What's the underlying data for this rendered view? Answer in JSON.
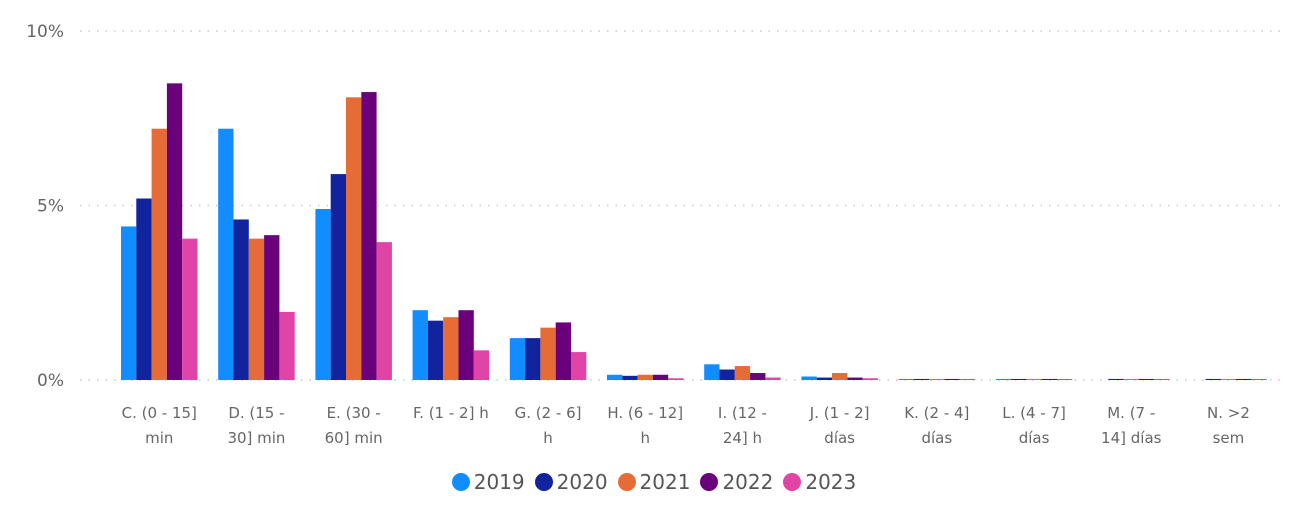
{
  "chart_data": {
    "type": "bar",
    "categories": [
      [
        "C. (0 - 15]",
        "min"
      ],
      [
        "D. (15 -",
        "30] min"
      ],
      [
        "E. (30 -",
        "60] min"
      ],
      [
        "F. (1 - 2] h"
      ],
      [
        "G. (2 - 6]",
        "h"
      ],
      [
        "H. (6 - 12]",
        "h"
      ],
      [
        "I. (12 -",
        "24] h"
      ],
      [
        "J. (1 - 2]",
        "días"
      ],
      [
        "K. (2 - 4]",
        "días"
      ],
      [
        "L. (4 - 7]",
        "días"
      ],
      [
        "M. (7 -",
        "14] días"
      ],
      [
        "N. >2",
        "sem"
      ]
    ],
    "series": [
      {
        "name": "2019",
        "color": "#118DFF",
        "values": [
          4.4,
          7.2,
          4.9,
          2.0,
          1.2,
          0.15,
          0.45,
          0.1,
          0.03,
          0.03,
          0.0,
          0.0
        ]
      },
      {
        "name": "2020",
        "color": "#12239E",
        "values": [
          5.2,
          4.6,
          5.9,
          1.7,
          1.2,
          0.12,
          0.3,
          0.07,
          0.03,
          0.03,
          0.03,
          0.03
        ]
      },
      {
        "name": "2021",
        "color": "#E66C37",
        "values": [
          7.2,
          4.05,
          8.1,
          1.8,
          1.5,
          0.15,
          0.4,
          0.2,
          0.03,
          0.03,
          0.03,
          0.03
        ]
      },
      {
        "name": "2022",
        "color": "#6B007B",
        "values": [
          8.5,
          4.15,
          8.25,
          2.0,
          1.65,
          0.15,
          0.2,
          0.07,
          0.03,
          0.03,
          0.03,
          0.03
        ]
      },
      {
        "name": "2023",
        "color": "#E044A7",
        "values": [
          4.05,
          1.95,
          3.95,
          0.85,
          0.8,
          0.05,
          0.07,
          0.05,
          0.03,
          0.03,
          0.03,
          0.03
        ]
      }
    ],
    "y_ticks": [
      "0%",
      "5%",
      "10%"
    ],
    "ylim": [
      0,
      10
    ],
    "grid": true,
    "legend_position": "bottom"
  }
}
